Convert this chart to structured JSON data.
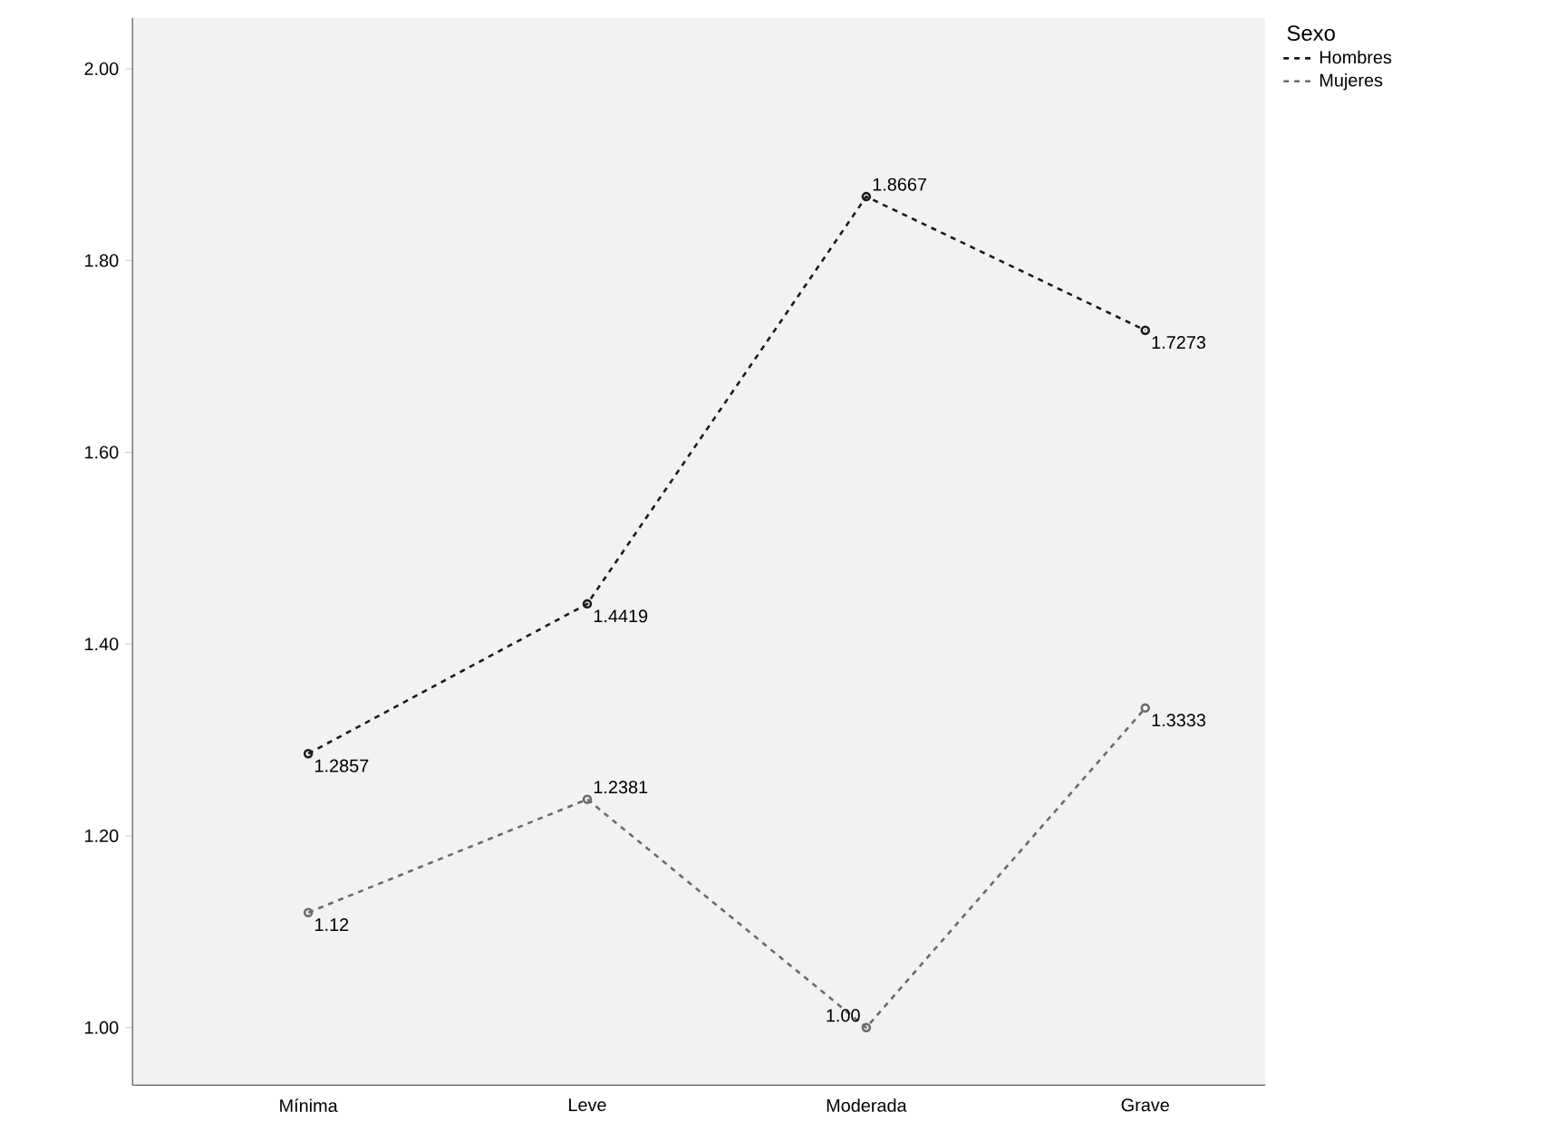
{
  "chart_data": {
    "type": "line",
    "categories": [
      "Mínima",
      "Leve",
      "Moderada",
      "Grave"
    ],
    "series": [
      {
        "name": "Hombres",
        "color": "#1a1a1a",
        "values": [
          1.2857,
          1.4419,
          1.8667,
          1.7273
        ],
        "value_labels": [
          "1.2857",
          "1.4419",
          "1.8667",
          "1.7273"
        ]
      },
      {
        "name": "Mujeres",
        "color": "#6b6b6b",
        "values": [
          1.12,
          1.2381,
          1.0,
          1.3333
        ],
        "value_labels": [
          "1.12",
          "1.2381",
          "1.00",
          "1.3333"
        ]
      }
    ],
    "ylim": [
      0.94,
      2.053
    ],
    "yticks": [
      {
        "value": 1.0,
        "label": "1.00"
      },
      {
        "value": 1.2,
        "label": "1.20"
      },
      {
        "value": 1.4,
        "label": "1.40"
      },
      {
        "value": 1.6,
        "label": "1.60"
      },
      {
        "value": 1.8,
        "label": "1.80"
      },
      {
        "value": 2.0,
        "label": "2.00"
      }
    ],
    "legend_title": "Sexo",
    "legend": "top right",
    "marker": "circle",
    "line_style": "dashed",
    "grid": false
  }
}
